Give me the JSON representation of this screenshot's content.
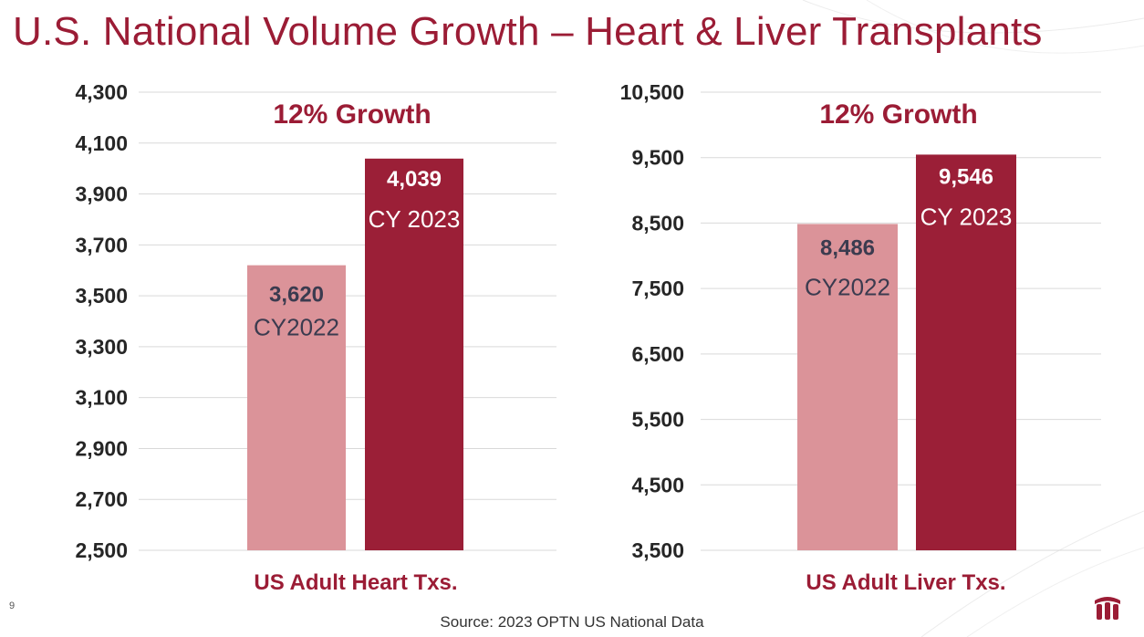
{
  "title": "U.S. National Volume Growth – Heart & Liver Transplants",
  "page_number": "9",
  "source": "Source: 2023 OPTN US National Data",
  "colors": {
    "accent": "#9b1c35",
    "cy2022_bar": "#db9399",
    "cy2023_bar": "#9b1f37",
    "grid": "#d9d9d9",
    "tick_text": "#262626",
    "label_dark": "#3b3b4f"
  },
  "logo_icon": "hospital-logo-icon",
  "chart_data": [
    {
      "type": "bar",
      "title": "US Adult Heart Txs.",
      "growth_label": "12% Growth",
      "xlabel": "US Adult Heart Txs.",
      "ylabel": "",
      "ylim": [
        2500,
        4300
      ],
      "yticks": [
        2500,
        2700,
        2900,
        3100,
        3300,
        3500,
        3700,
        3900,
        4100,
        4300
      ],
      "ytick_labels": [
        "2,500",
        "2,700",
        "2,900",
        "3,100",
        "3,300",
        "3,500",
        "3,700",
        "3,900",
        "4,100",
        "4,300"
      ],
      "grid": true,
      "categories": [
        "CY2022",
        "CY 2023"
      ],
      "values": [
        3620,
        4039
      ],
      "value_labels": [
        "3,620",
        "4,039"
      ]
    },
    {
      "type": "bar",
      "title": "US Adult Liver Txs.",
      "growth_label": "12% Growth",
      "xlabel": "US Adult Liver Txs.",
      "ylabel": "",
      "ylim": [
        3500,
        10500
      ],
      "yticks": [
        3500,
        4500,
        5500,
        6500,
        7500,
        8500,
        9500,
        10500
      ],
      "ytick_labels": [
        "3,500",
        "4,500",
        "5,500",
        "6,500",
        "7,500",
        "8,500",
        "9,500",
        "10,500"
      ],
      "grid": true,
      "categories": [
        "CY2022",
        "CY 2023"
      ],
      "values": [
        8486,
        9546
      ],
      "value_labels": [
        "8,486",
        "9,546"
      ]
    }
  ]
}
